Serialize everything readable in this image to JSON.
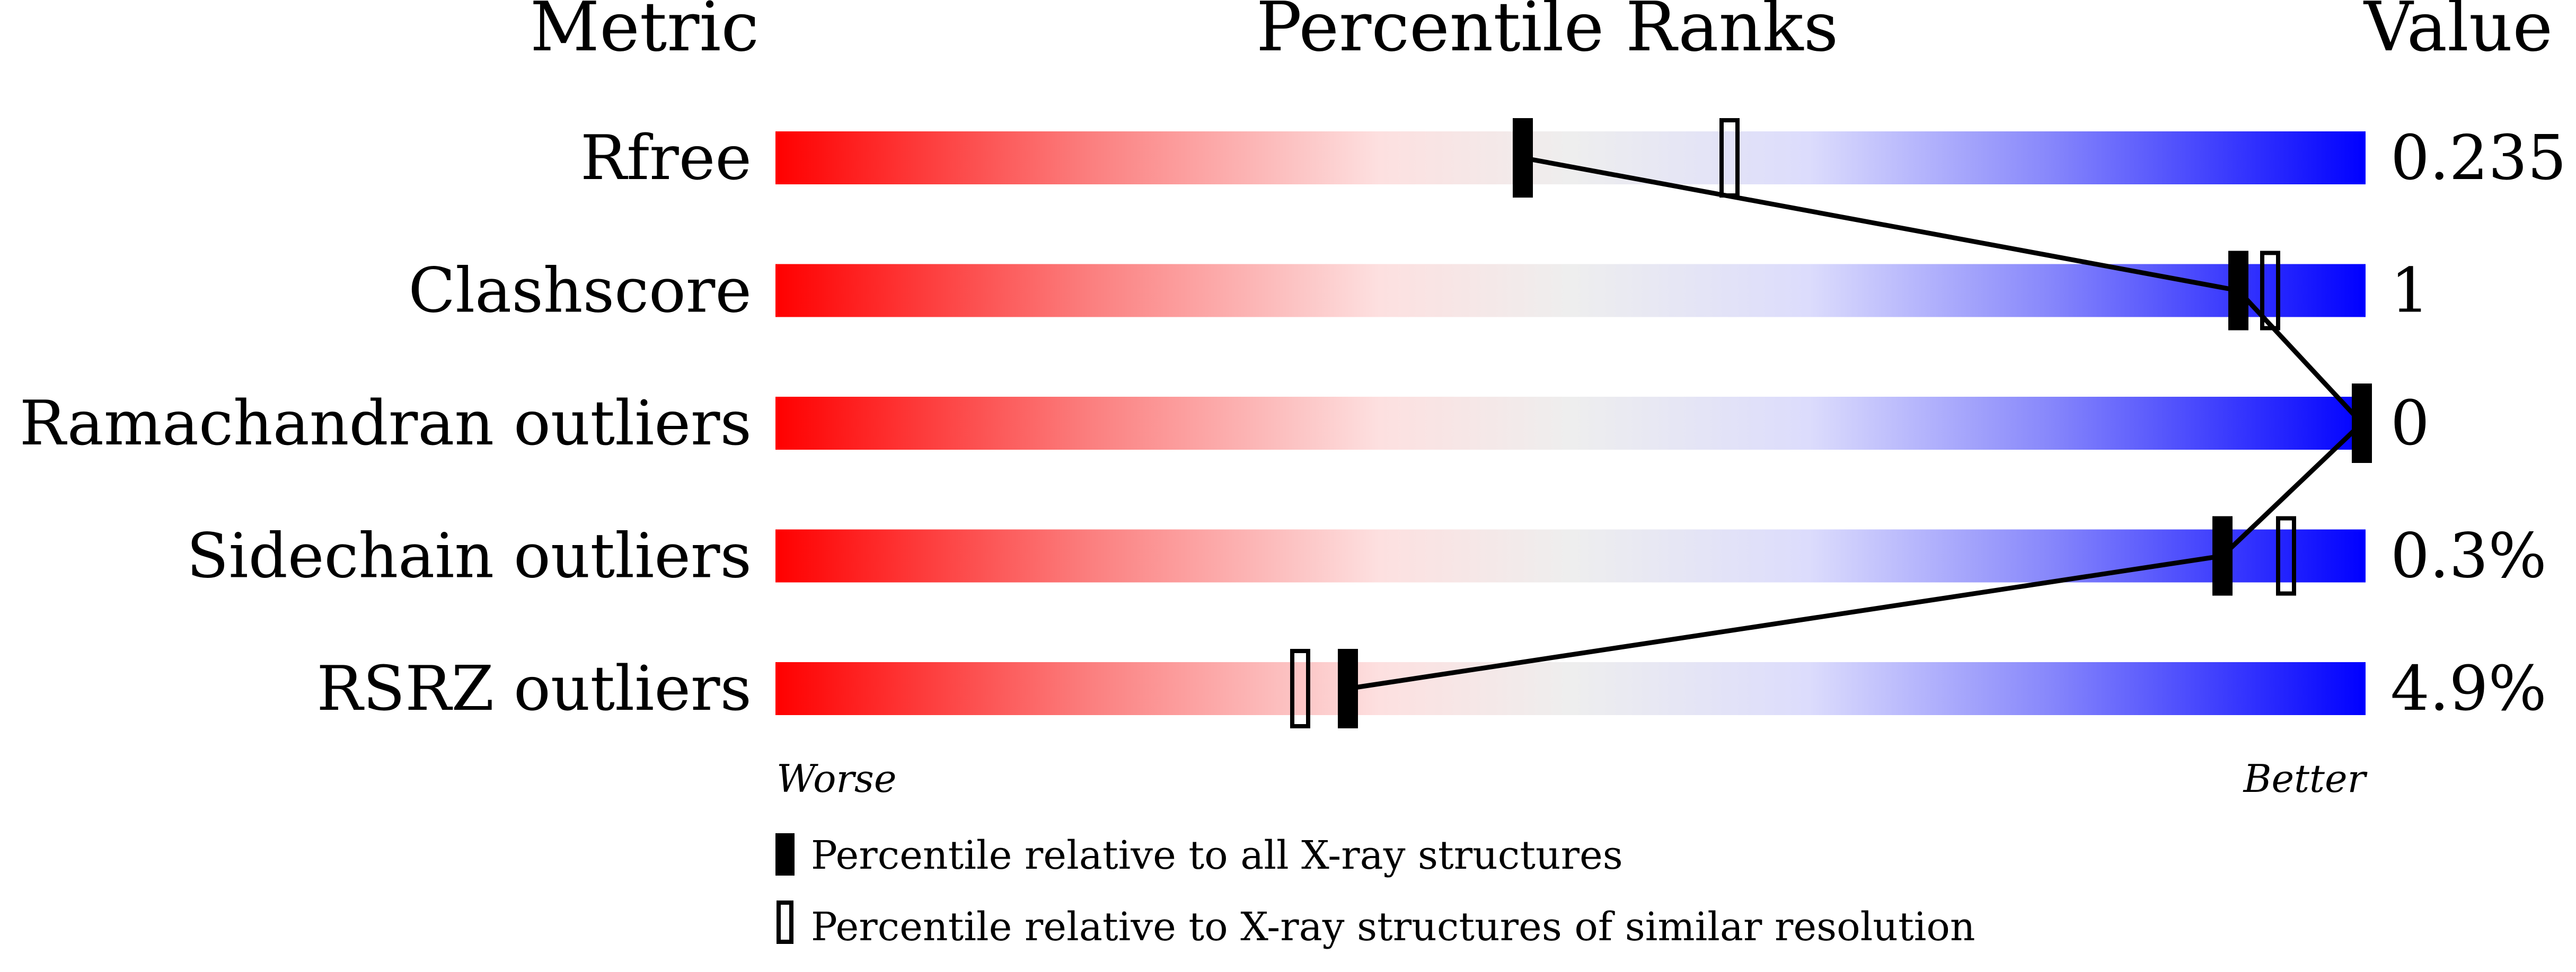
{
  "chart_data": {
    "type": "percentile-bar",
    "headers": {
      "metric": "Metric",
      "ranks": "Percentile Ranks",
      "value": "Value"
    },
    "xlim": [
      0,
      100
    ],
    "metrics": [
      {
        "name": "Rfree",
        "value": "0.235",
        "percentile_all": 47,
        "percentile_similar": 60
      },
      {
        "name": "Clashscore",
        "value": "1",
        "percentile_all": 92,
        "percentile_similar": 94
      },
      {
        "name": "Ramachandran outliers",
        "value": "0",
        "percentile_all": 100,
        "percentile_similar": 100
      },
      {
        "name": "Sidechain outliers",
        "value": "0.3%",
        "percentile_all": 91,
        "percentile_similar": 95
      },
      {
        "name": "RSRZ outliers",
        "value": "4.9%",
        "percentile_all": 36,
        "percentile_similar": 33
      }
    ],
    "axis_ends": {
      "left": "Worse",
      "right": "Better"
    },
    "legend": [
      {
        "marker": "filled",
        "label": "Percentile relative to all X-ray structures"
      },
      {
        "marker": "open",
        "label": "Percentile relative to X-ray structures of similar resolution"
      }
    ],
    "colors": {
      "worse": "#ff0000",
      "mid": "#eeeeee",
      "better": "#0000ff"
    }
  }
}
